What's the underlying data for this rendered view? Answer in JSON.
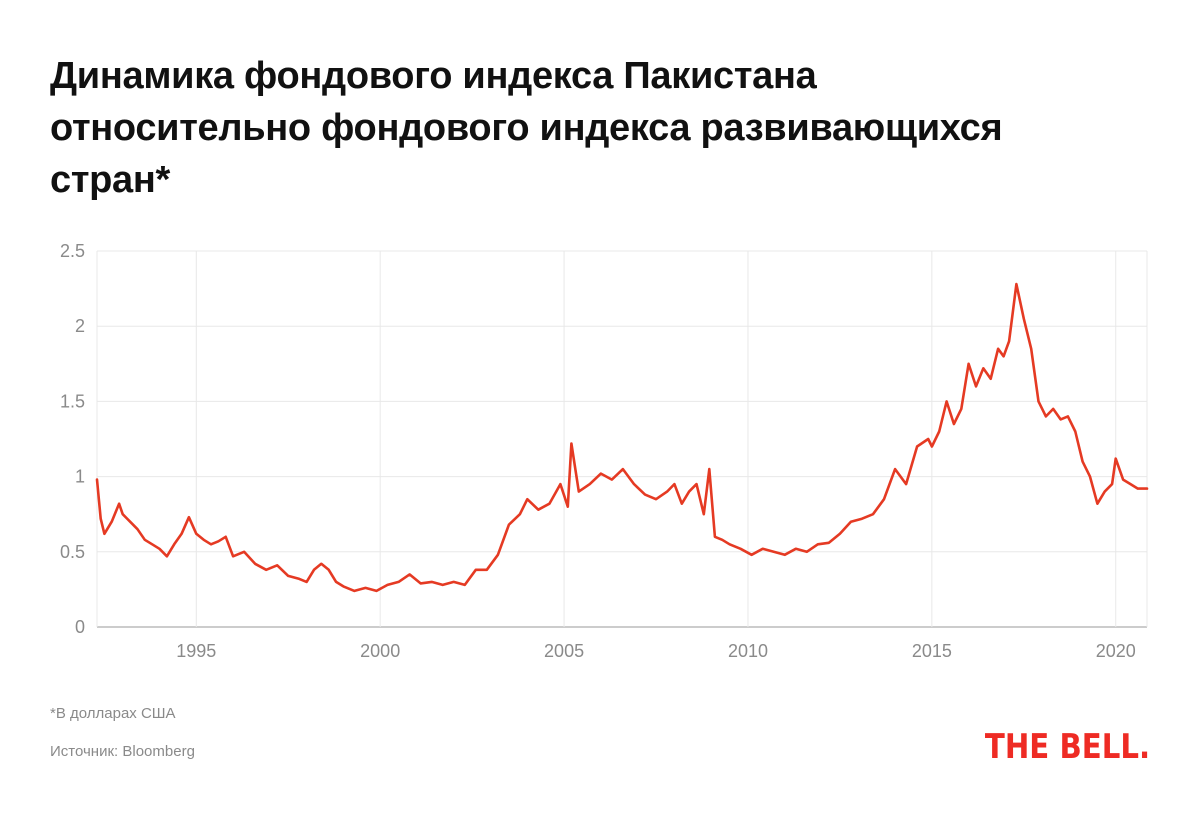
{
  "chart_data": {
    "type": "line",
    "title": "Динамика фондового индекса Пакистана относительно фондового индекса развивающихся стран*",
    "xlabel": "",
    "ylabel": "",
    "xlim": [
      1992.3,
      2020.85
    ],
    "ylim": [
      0,
      2.5
    ],
    "yticks": [
      0,
      0.5,
      1,
      1.5,
      2,
      2.5
    ],
    "ytick_labels": [
      "0",
      "0.5",
      "1",
      "1.5",
      "2",
      "2.5"
    ],
    "xticks": [
      1995,
      2000,
      2005,
      2010,
      2015,
      2020
    ],
    "xtick_labels": [
      "1995",
      "2000",
      "2005",
      "2010",
      "2015",
      "2020"
    ],
    "grid": true,
    "color": "#e53a23",
    "series": [
      {
        "name": "",
        "x": [
          1992.3,
          1992.4,
          1992.5,
          1992.7,
          1992.9,
          1993.0,
          1993.2,
          1993.4,
          1993.6,
          1993.8,
          1994.0,
          1994.2,
          1994.4,
          1994.6,
          1994.8,
          1995.0,
          1995.2,
          1995.4,
          1995.6,
          1995.8,
          1996.0,
          1996.3,
          1996.6,
          1996.9,
          1997.2,
          1997.5,
          1997.8,
          1998.0,
          1998.2,
          1998.4,
          1998.6,
          1998.8,
          1999.0,
          1999.3,
          1999.6,
          1999.9,
          2000.2,
          2000.5,
          2000.8,
          2001.1,
          2001.4,
          2001.7,
          2002.0,
          2002.3,
          2002.6,
          2002.9,
          2003.2,
          2003.5,
          2003.8,
          2004.0,
          2004.3,
          2004.6,
          2004.9,
          2005.1,
          2005.2,
          2005.4,
          2005.7,
          2006.0,
          2006.3,
          2006.6,
          2006.9,
          2007.2,
          2007.5,
          2007.8,
          2008.0,
          2008.2,
          2008.4,
          2008.6,
          2008.8,
          2008.95,
          2009.1,
          2009.3,
          2009.5,
          2009.8,
          2010.1,
          2010.4,
          2010.7,
          2011.0,
          2011.3,
          2011.6,
          2011.9,
          2012.2,
          2012.5,
          2012.8,
          2013.1,
          2013.4,
          2013.7,
          2014.0,
          2014.3,
          2014.6,
          2014.9,
          2015.0,
          2015.2,
          2015.4,
          2015.6,
          2015.8,
          2016.0,
          2016.2,
          2016.4,
          2016.6,
          2016.8,
          2016.95,
          2017.1,
          2017.3,
          2017.5,
          2017.7,
          2017.9,
          2018.1,
          2018.3,
          2018.5,
          2018.7,
          2018.9,
          2019.1,
          2019.3,
          2019.5,
          2019.7,
          2019.9,
          2020.0,
          2020.2,
          2020.4,
          2020.6,
          2020.85
        ],
        "y": [
          0.98,
          0.72,
          0.62,
          0.7,
          0.82,
          0.75,
          0.7,
          0.65,
          0.58,
          0.55,
          0.52,
          0.47,
          0.55,
          0.62,
          0.73,
          0.62,
          0.58,
          0.55,
          0.57,
          0.6,
          0.47,
          0.5,
          0.42,
          0.38,
          0.41,
          0.34,
          0.32,
          0.3,
          0.38,
          0.42,
          0.38,
          0.3,
          0.27,
          0.24,
          0.26,
          0.24,
          0.28,
          0.3,
          0.35,
          0.29,
          0.3,
          0.28,
          0.3,
          0.28,
          0.38,
          0.38,
          0.48,
          0.68,
          0.75,
          0.85,
          0.78,
          0.82,
          0.95,
          0.8,
          1.22,
          0.9,
          0.95,
          1.02,
          0.98,
          1.05,
          0.95,
          0.88,
          0.85,
          0.9,
          0.95,
          0.82,
          0.9,
          0.95,
          0.75,
          1.05,
          0.6,
          0.58,
          0.55,
          0.52,
          0.48,
          0.52,
          0.5,
          0.48,
          0.52,
          0.5,
          0.55,
          0.56,
          0.62,
          0.7,
          0.72,
          0.75,
          0.85,
          1.05,
          0.95,
          1.2,
          1.25,
          1.2,
          1.3,
          1.5,
          1.35,
          1.45,
          1.75,
          1.6,
          1.72,
          1.65,
          1.85,
          1.8,
          1.9,
          2.28,
          2.05,
          1.85,
          1.5,
          1.4,
          1.45,
          1.38,
          1.4,
          1.3,
          1.1,
          1.0,
          0.82,
          0.9,
          0.95,
          1.12,
          0.98,
          0.95,
          0.92,
          0.92
        ]
      }
    ]
  },
  "footnote": "*В долларах США",
  "source": "Источник: Bloomberg",
  "logo": "THE BELL."
}
